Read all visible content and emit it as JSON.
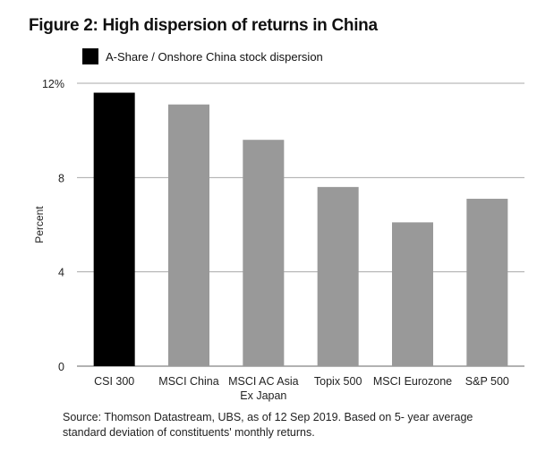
{
  "chart_data": {
    "type": "bar",
    "title": "Figure 2: High dispersion of returns in China",
    "ylabel": "Percent",
    "xlabel": "",
    "ylim": [
      0,
      12
    ],
    "yticks": [
      "0",
      "4",
      "8",
      "12%"
    ],
    "ytick_values": [
      0,
      4,
      8,
      12
    ],
    "grid": true,
    "legend": {
      "position": "top-left",
      "entries": [
        {
          "label": "A-Share / Onshore China stock dispersion",
          "color": "#000000"
        }
      ]
    },
    "categories": [
      [
        "CSI 300"
      ],
      [
        "MSCI China"
      ],
      [
        "MSCI AC Asia",
        "Ex Japan"
      ],
      [
        "Topix 500"
      ],
      [
        "MSCI Eurozone"
      ],
      [
        "S&P 500"
      ]
    ],
    "values": [
      11.6,
      11.1,
      9.6,
      7.6,
      6.1,
      7.1
    ],
    "bar_colors": [
      "#000000",
      "#999999",
      "#999999",
      "#999999",
      "#999999",
      "#999999"
    ],
    "source": "Source: Thomson Datastream, UBS, as of 12 Sep 2019. Based on 5- year average standard deviation of constituents' monthly returns."
  }
}
